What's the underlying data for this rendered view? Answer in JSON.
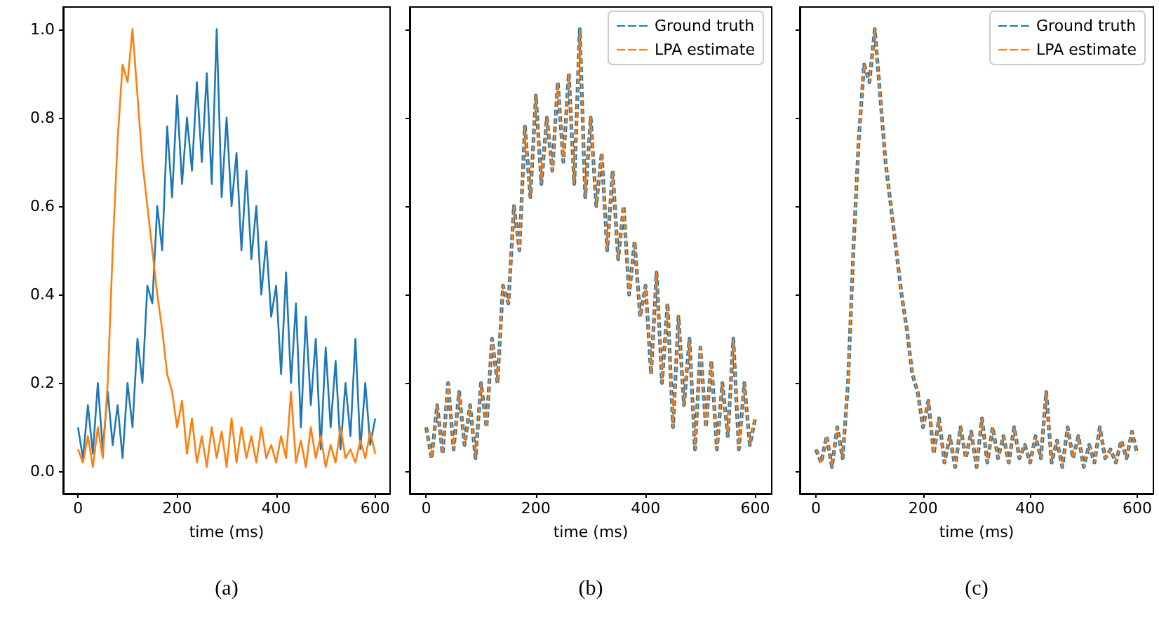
{
  "chart_data": [
    {
      "type": "line",
      "xlabel": "time (ms)",
      "annotations": [
        "(a)"
      ],
      "xlim": [
        -30,
        630
      ],
      "xticks": [
        0,
        200,
        400,
        600
      ],
      "ylim": [
        -0.05,
        1.05
      ],
      "yticks": [
        {
          "value": 0,
          "label": "0.0"
        },
        0.2,
        0.4,
        0.6,
        0.8,
        {
          "value": 1,
          "label": "1.0"
        }
      ],
      "grid": false,
      "legend": false,
      "line_style": "solid",
      "x": [
        0,
        10,
        20,
        30,
        40,
        50,
        60,
        70,
        80,
        90,
        100,
        110,
        120,
        130,
        140,
        150,
        160,
        170,
        180,
        190,
        200,
        210,
        220,
        230,
        240,
        250,
        260,
        270,
        280,
        290,
        300,
        310,
        320,
        330,
        340,
        350,
        360,
        370,
        380,
        390,
        400,
        410,
        420,
        430,
        440,
        450,
        460,
        470,
        480,
        490,
        500,
        510,
        520,
        530,
        540,
        550,
        560,
        570,
        580,
        590,
        600
      ],
      "series": [
        {
          "color": "#1f77b4",
          "values": [
            0.1,
            0.03,
            0.15,
            0.04,
            0.2,
            0.05,
            0.18,
            0.06,
            0.15,
            0.03,
            0.2,
            0.1,
            0.3,
            0.2,
            0.42,
            0.38,
            0.6,
            0.5,
            0.78,
            0.62,
            0.85,
            0.65,
            0.8,
            0.68,
            0.88,
            0.7,
            0.9,
            0.65,
            1.0,
            0.62,
            0.8,
            0.6,
            0.72,
            0.5,
            0.68,
            0.48,
            0.6,
            0.4,
            0.52,
            0.35,
            0.42,
            0.22,
            0.45,
            0.2,
            0.38,
            0.1,
            0.35,
            0.15,
            0.3,
            0.05,
            0.28,
            0.1,
            0.25,
            0.05,
            0.2,
            0.08,
            0.3,
            0.05,
            0.2,
            0.06,
            0.12
          ]
        },
        {
          "color": "#ff7f0e",
          "values": [
            0.05,
            0.02,
            0.08,
            0.01,
            0.1,
            0.03,
            0.2,
            0.5,
            0.75,
            0.92,
            0.88,
            1.0,
            0.85,
            0.7,
            0.6,
            0.5,
            0.4,
            0.32,
            0.22,
            0.18,
            0.1,
            0.16,
            0.04,
            0.12,
            0.02,
            0.08,
            0.01,
            0.1,
            0.03,
            0.09,
            0.01,
            0.12,
            0.02,
            0.1,
            0.03,
            0.08,
            0.02,
            0.1,
            0.03,
            0.06,
            0.02,
            0.08,
            0.03,
            0.18,
            0.02,
            0.07,
            0.01,
            0.1,
            0.03,
            0.08,
            0.01,
            0.06,
            0.02,
            0.1,
            0.03,
            0.05,
            0.02,
            0.07,
            0.03,
            0.09,
            0.04
          ]
        }
      ]
    },
    {
      "type": "line",
      "xlabel": "time (ms)",
      "annotations": [
        "(b)"
      ],
      "xlim": [
        -30,
        630
      ],
      "xticks": [
        0,
        200,
        400,
        600
      ],
      "ylim": [
        -0.05,
        1.05
      ],
      "yticks": [
        0.0,
        0.2,
        0.4,
        0.6,
        0.8,
        1.0
      ],
      "tick_labels": "x",
      "grid": false,
      "legend": "top right",
      "line_style": "dashed",
      "x": [
        0,
        10,
        20,
        30,
        40,
        50,
        60,
        70,
        80,
        90,
        100,
        110,
        120,
        130,
        140,
        150,
        160,
        170,
        180,
        190,
        200,
        210,
        220,
        230,
        240,
        250,
        260,
        270,
        280,
        290,
        300,
        310,
        320,
        330,
        340,
        350,
        360,
        370,
        380,
        390,
        400,
        410,
        420,
        430,
        440,
        450,
        460,
        470,
        480,
        490,
        500,
        510,
        520,
        530,
        540,
        550,
        560,
        570,
        580,
        590,
        600
      ],
      "series": [
        {
          "name": "Ground truth",
          "color": "#1f77b4",
          "values": [
            0.1,
            0.03,
            0.15,
            0.04,
            0.2,
            0.05,
            0.18,
            0.06,
            0.15,
            0.03,
            0.2,
            0.1,
            0.3,
            0.2,
            0.42,
            0.38,
            0.6,
            0.5,
            0.78,
            0.62,
            0.85,
            0.65,
            0.8,
            0.68,
            0.88,
            0.7,
            0.9,
            0.65,
            1.0,
            0.62,
            0.8,
            0.6,
            0.72,
            0.5,
            0.68,
            0.48,
            0.6,
            0.4,
            0.52,
            0.35,
            0.42,
            0.22,
            0.45,
            0.2,
            0.38,
            0.1,
            0.35,
            0.15,
            0.3,
            0.05,
            0.28,
            0.1,
            0.25,
            0.05,
            0.2,
            0.08,
            0.3,
            0.05,
            0.2,
            0.06,
            0.12
          ]
        },
        {
          "name": "LPA estimate",
          "color": "#ff7f0e",
          "values": [
            0.1,
            0.03,
            0.15,
            0.04,
            0.2,
            0.05,
            0.18,
            0.06,
            0.15,
            0.03,
            0.2,
            0.1,
            0.3,
            0.2,
            0.42,
            0.38,
            0.6,
            0.5,
            0.78,
            0.62,
            0.85,
            0.65,
            0.8,
            0.68,
            0.88,
            0.7,
            0.9,
            0.65,
            1.0,
            0.62,
            0.8,
            0.6,
            0.72,
            0.5,
            0.68,
            0.48,
            0.6,
            0.4,
            0.52,
            0.35,
            0.42,
            0.22,
            0.45,
            0.2,
            0.38,
            0.1,
            0.35,
            0.15,
            0.3,
            0.05,
            0.28,
            0.1,
            0.25,
            0.05,
            0.2,
            0.08,
            0.3,
            0.05,
            0.2,
            0.06,
            0.12
          ]
        }
      ]
    },
    {
      "type": "line",
      "xlabel": "time (ms)",
      "annotations": [
        "(c)"
      ],
      "xlim": [
        -30,
        630
      ],
      "xticks": [
        0,
        200,
        400,
        600
      ],
      "ylim": [
        -0.05,
        1.05
      ],
      "yticks": [
        0.0,
        0.2,
        0.4,
        0.6,
        0.8,
        1.0
      ],
      "tick_labels": "x",
      "grid": false,
      "legend": "top right",
      "line_style": "dashed",
      "x": [
        0,
        10,
        20,
        30,
        40,
        50,
        60,
        70,
        80,
        90,
        100,
        110,
        120,
        130,
        140,
        150,
        160,
        170,
        180,
        190,
        200,
        210,
        220,
        230,
        240,
        250,
        260,
        270,
        280,
        290,
        300,
        310,
        320,
        330,
        340,
        350,
        360,
        370,
        380,
        390,
        400,
        410,
        420,
        430,
        440,
        450,
        460,
        470,
        480,
        490,
        500,
        510,
        520,
        530,
        540,
        550,
        560,
        570,
        580,
        590,
        600
      ],
      "series": [
        {
          "name": "Ground truth",
          "color": "#1f77b4",
          "values": [
            0.05,
            0.02,
            0.08,
            0.01,
            0.1,
            0.03,
            0.2,
            0.5,
            0.75,
            0.92,
            0.88,
            1.0,
            0.85,
            0.7,
            0.6,
            0.5,
            0.4,
            0.32,
            0.22,
            0.18,
            0.1,
            0.16,
            0.04,
            0.12,
            0.02,
            0.08,
            0.01,
            0.1,
            0.03,
            0.09,
            0.01,
            0.12,
            0.02,
            0.1,
            0.03,
            0.08,
            0.02,
            0.1,
            0.03,
            0.06,
            0.02,
            0.08,
            0.03,
            0.18,
            0.02,
            0.07,
            0.01,
            0.1,
            0.03,
            0.08,
            0.01,
            0.06,
            0.02,
            0.1,
            0.03,
            0.05,
            0.02,
            0.07,
            0.03,
            0.09,
            0.04
          ]
        },
        {
          "name": "LPA estimate",
          "color": "#ff7f0e",
          "values": [
            0.05,
            0.02,
            0.08,
            0.01,
            0.1,
            0.03,
            0.2,
            0.5,
            0.75,
            0.92,
            0.88,
            1.0,
            0.85,
            0.7,
            0.6,
            0.5,
            0.4,
            0.32,
            0.22,
            0.18,
            0.1,
            0.16,
            0.04,
            0.12,
            0.02,
            0.08,
            0.01,
            0.1,
            0.03,
            0.09,
            0.01,
            0.12,
            0.02,
            0.1,
            0.03,
            0.08,
            0.02,
            0.1,
            0.03,
            0.06,
            0.02,
            0.08,
            0.03,
            0.18,
            0.02,
            0.07,
            0.01,
            0.1,
            0.03,
            0.08,
            0.01,
            0.06,
            0.02,
            0.1,
            0.03,
            0.05,
            0.02,
            0.07,
            0.03,
            0.09,
            0.04
          ]
        }
      ]
    }
  ]
}
